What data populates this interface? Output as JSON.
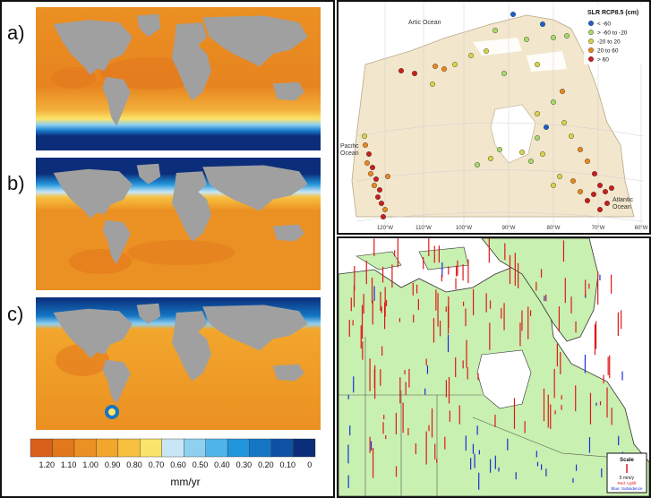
{
  "left_panel": {
    "maps": [
      {
        "label": "a)"
      },
      {
        "label": "b)"
      },
      {
        "label": "c)"
      }
    ],
    "colorbar": {
      "ticks": [
        "1.20",
        "1.10",
        "1.00",
        "0.90",
        "0.80",
        "0.70",
        "0.60",
        "0.50",
        "0.40",
        "0.30",
        "0.20",
        "0.10",
        "0"
      ],
      "colors": [
        "#d9601a",
        "#e2781c",
        "#eb9022",
        "#f2a62c",
        "#f8c040",
        "#fbe46a",
        "#c8e6f5",
        "#8fd0f0",
        "#4fb4ea",
        "#2295dc",
        "#1476c4",
        "#0f52a4",
        "#0b2d7a"
      ],
      "unit": "mm/yr"
    }
  },
  "top_right": {
    "legend": {
      "title": "SLR RCP8.5 (cm)",
      "items": [
        {
          "label": "< -60",
          "color": "#1f5fc8"
        },
        {
          "label": "> -60 to -20",
          "color": "#a9d86a"
        },
        {
          "label": "-20 to 20",
          "color": "#d8d24a"
        },
        {
          "label": "20 to 60",
          "color": "#e8881e"
        },
        {
          "label": "> 60",
          "color": "#c81e1e"
        }
      ]
    },
    "ocean_labels": {
      "arctic": "Artic Ocean",
      "pacific": "Pacific Ocean",
      "atlantic": "Atlantic Ocean"
    },
    "longitudes": [
      "120°W",
      "110°W",
      "100°W",
      "90°W",
      "80°W",
      "70°W",
      "60°W"
    ]
  },
  "bottom_right": {
    "scale": {
      "title": "Scale",
      "value": "5 mm/y",
      "uplift": "Red: Uplift",
      "subsidence": "Blue: Subsidence"
    },
    "colors": {
      "uplift": "#e01818",
      "subsidence": "#1a2ed8",
      "land": "#c8f0b0"
    }
  }
}
